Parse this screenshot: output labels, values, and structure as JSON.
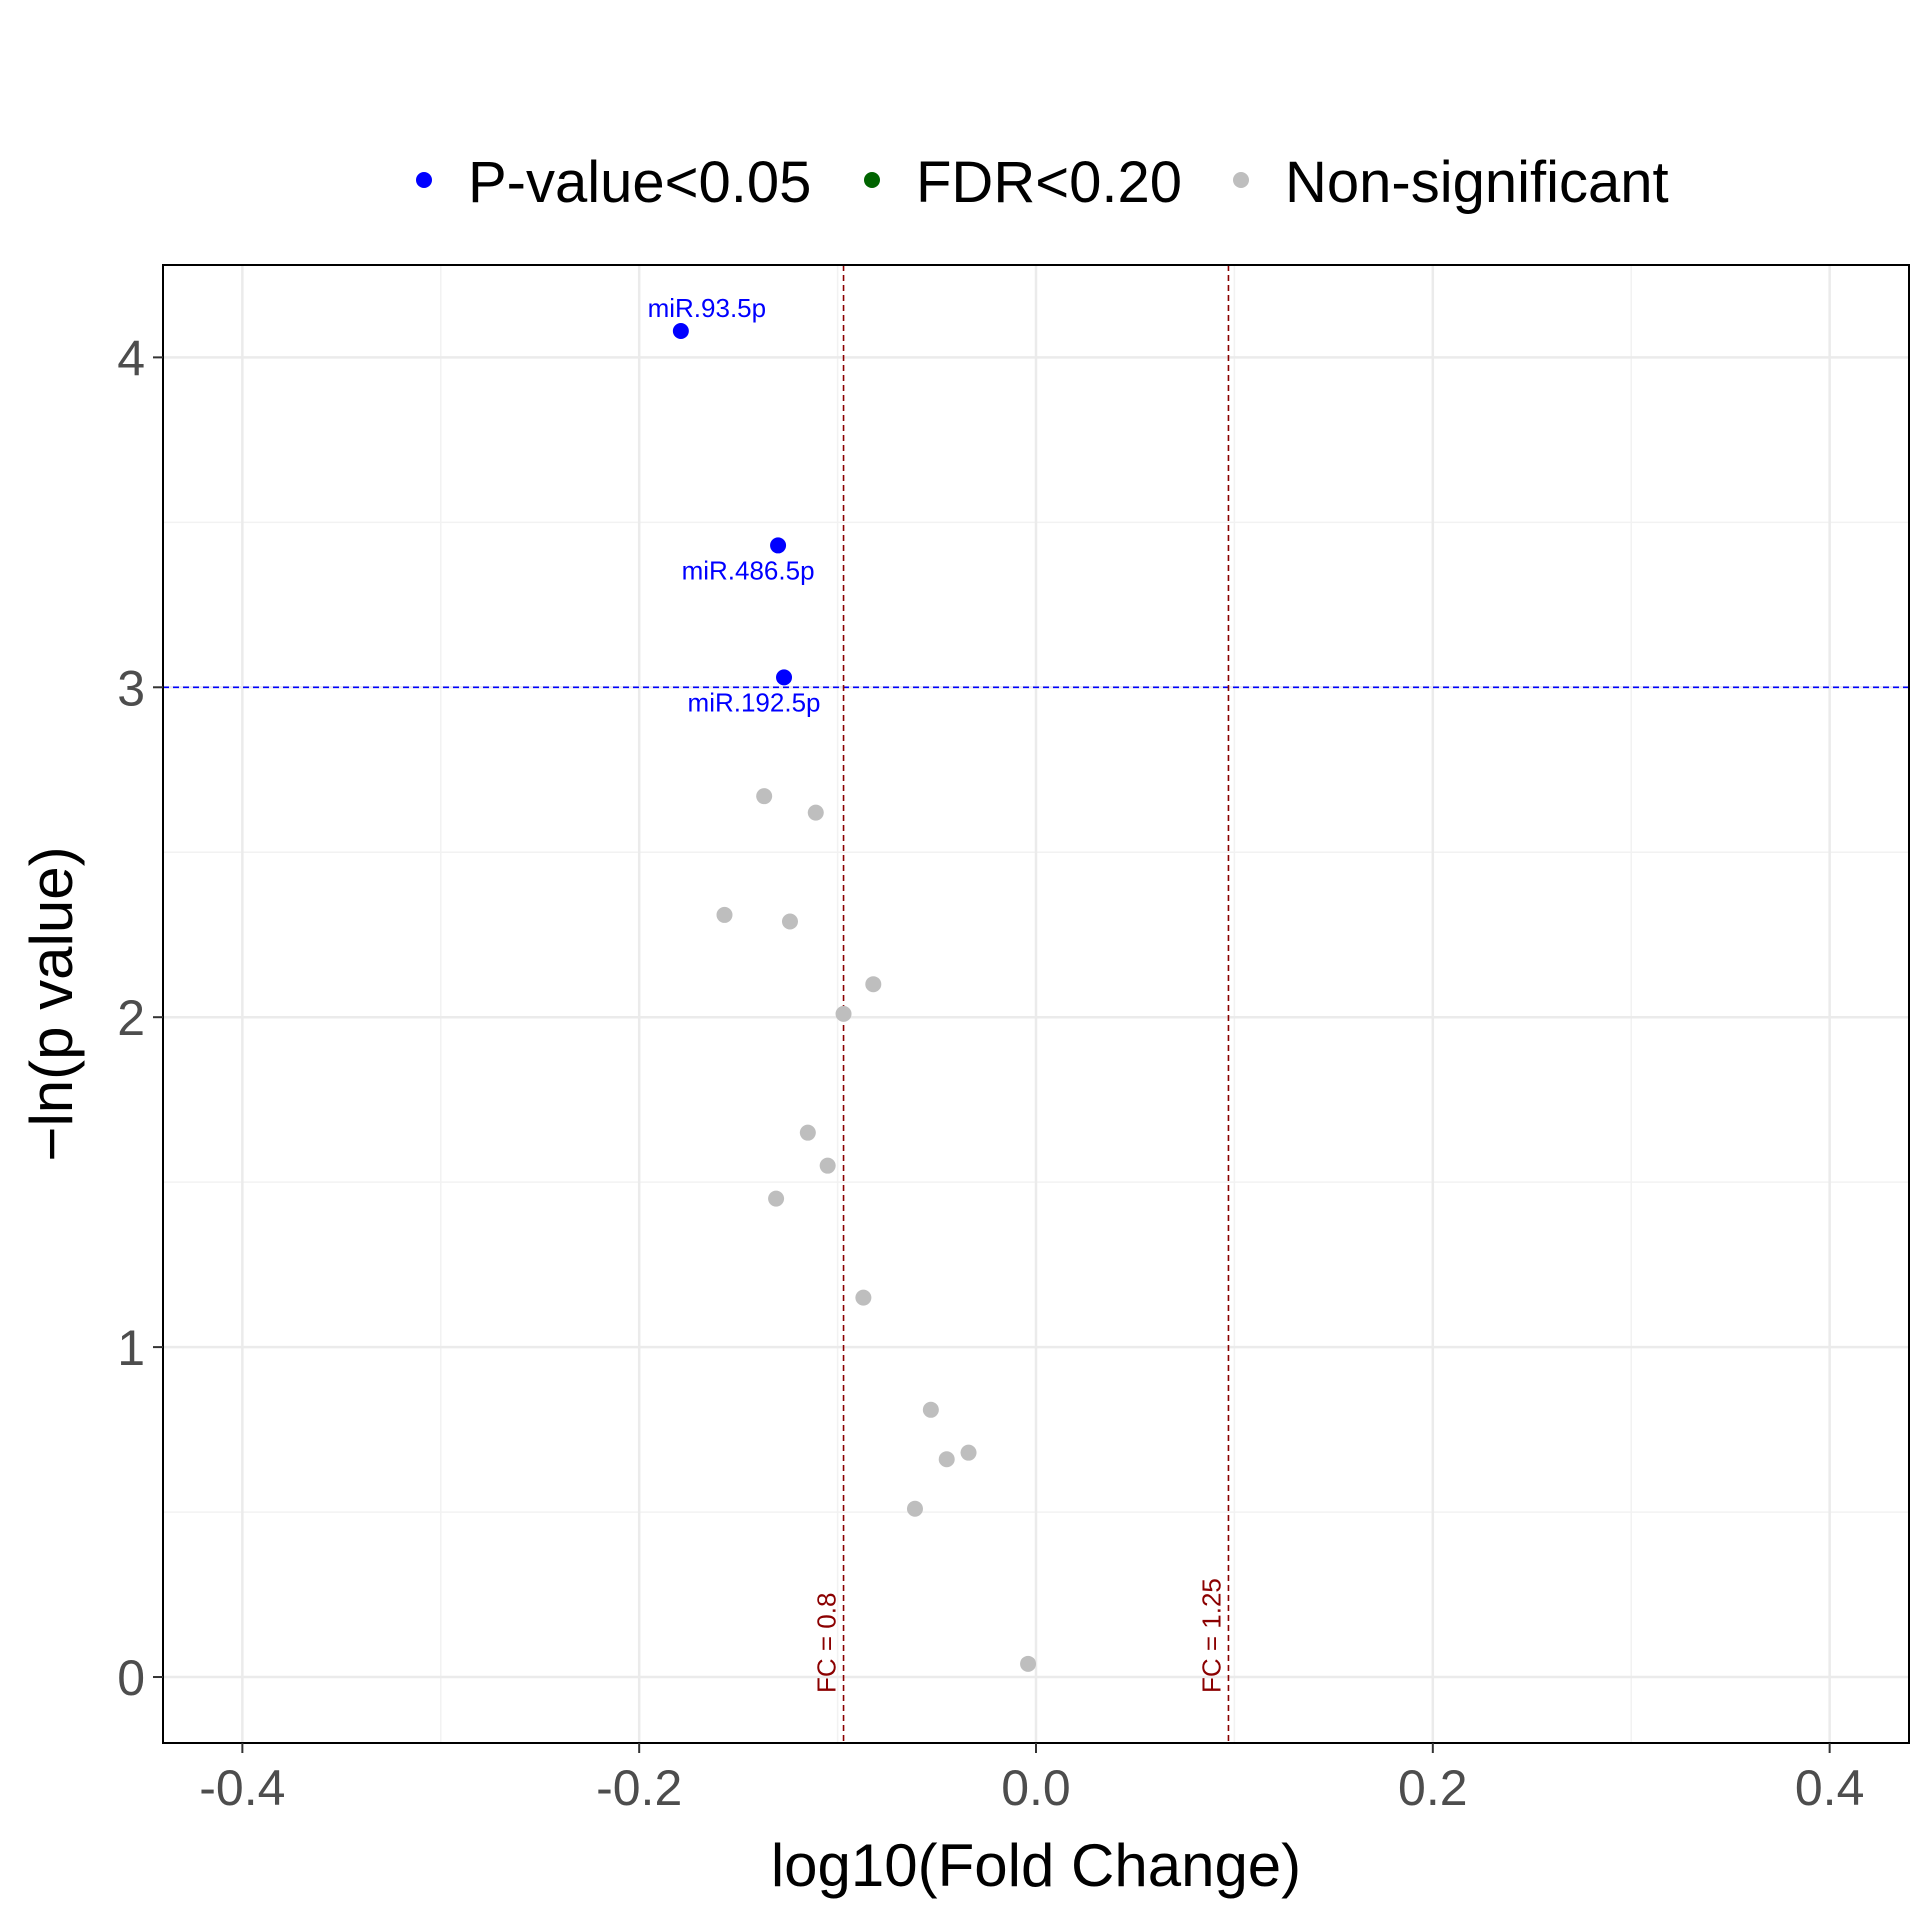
{
  "legend": {
    "position": "top",
    "items": [
      {
        "label": "P-value<0.05",
        "color": "#0000FF"
      },
      {
        "label": "FDR<0.20",
        "color": "#006400"
      },
      {
        "label": "Non-significant",
        "color": "#BEBEBE"
      }
    ]
  },
  "chart_data": {
    "type": "scatter",
    "xlabel": "log10(Fold Change)",
    "ylabel": "−ln(p value)",
    "xlim": [
      -0.44,
      0.44
    ],
    "ylim": [
      -0.2,
      4.28
    ],
    "x_ticks": [
      -0.4,
      -0.2,
      0.0,
      0.2,
      0.4
    ],
    "x_tick_labels": [
      "-0.4",
      "-0.2",
      "0.0",
      "0.2",
      "0.4"
    ],
    "y_ticks": [
      0,
      1,
      2,
      3,
      4
    ],
    "y_tick_labels": [
      "0",
      "1",
      "2",
      "3",
      "4"
    ],
    "grid": true,
    "thresholds": {
      "vertical": [
        {
          "x": -0.097,
          "label": "FC = 0.8",
          "color": "#8B0000"
        },
        {
          "x": 0.097,
          "label": "FC = 1.25",
          "color": "#8B0000"
        }
      ],
      "horizontal": [
        {
          "y": 3.0,
          "color": "#0000FF"
        }
      ]
    },
    "series": [
      {
        "name": "P-value<0.05",
        "color": "#0000FF",
        "points": [
          {
            "x": -0.179,
            "y": 4.08,
            "label": "miR.93.5p",
            "label_pos": "above"
          },
          {
            "x": -0.13,
            "y": 3.43,
            "label": "miR.486.5p",
            "label_pos": "below"
          },
          {
            "x": -0.127,
            "y": 3.03,
            "label": "miR.192.5p",
            "label_pos": "below"
          }
        ]
      },
      {
        "name": "FDR<0.20",
        "color": "#006400",
        "points": []
      },
      {
        "name": "Non-significant",
        "color": "#BEBEBE",
        "points": [
          {
            "x": -0.137,
            "y": 2.67
          },
          {
            "x": -0.111,
            "y": 2.62
          },
          {
            "x": -0.157,
            "y": 2.31
          },
          {
            "x": -0.124,
            "y": 2.29
          },
          {
            "x": -0.082,
            "y": 2.1
          },
          {
            "x": -0.097,
            "y": 2.01
          },
          {
            "x": -0.115,
            "y": 1.65
          },
          {
            "x": -0.105,
            "y": 1.55
          },
          {
            "x": -0.131,
            "y": 1.45
          },
          {
            "x": -0.087,
            "y": 1.15
          },
          {
            "x": -0.053,
            "y": 0.81
          },
          {
            "x": -0.045,
            "y": 0.66
          },
          {
            "x": -0.034,
            "y": 0.68
          },
          {
            "x": -0.061,
            "y": 0.51
          },
          {
            "x": -0.004,
            "y": 0.04
          }
        ]
      }
    ]
  }
}
